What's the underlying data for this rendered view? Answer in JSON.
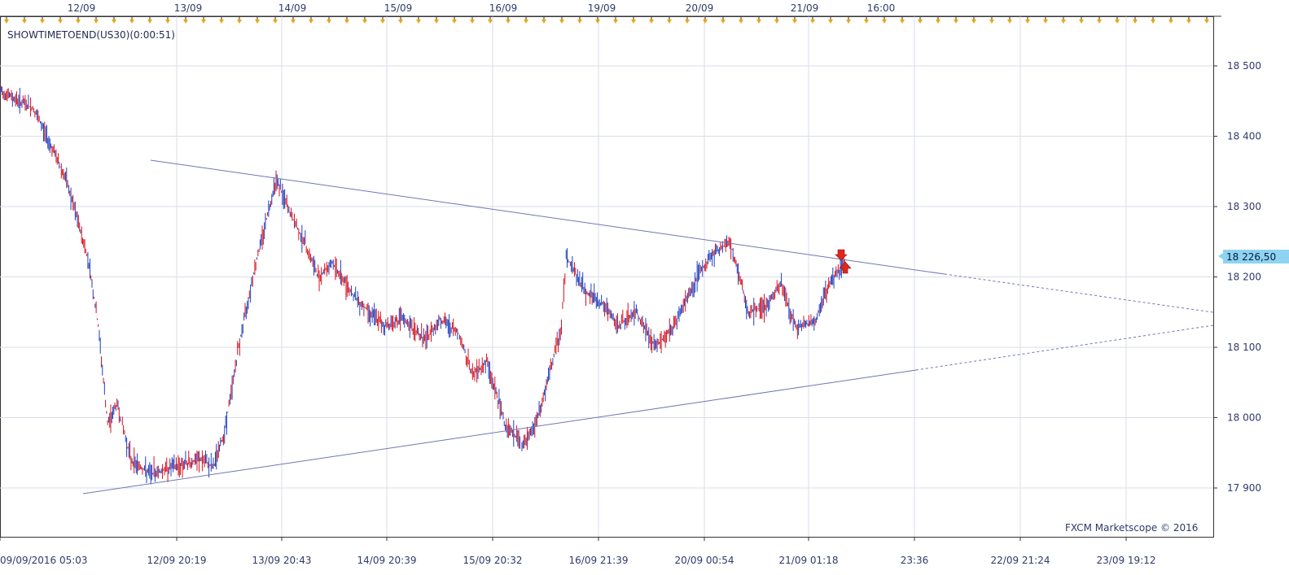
{
  "indicator_label": "SHOWTIMETOEND(US30)(0:00:51)",
  "watermark": "FXCM Marketscope © 2016",
  "current_price_label": "18 226,50",
  "colors": {
    "background": "#ffffff",
    "grid": "#d9dde8",
    "axis": "#333333",
    "up_candle": "#1f3fbf",
    "down_candle": "#d8121d",
    "trendline": "#6f76b3",
    "price_tag": "#8fd3f2",
    "session_marker": "#f0a30a",
    "signal_arrow": "#e1261c"
  },
  "top_axis_labels": [
    "12/09",
    "13/09",
    "14/09",
    "15/09",
    "16/09",
    "19/09",
    "20/09",
    "21/09",
    "16:00"
  ],
  "bottom_axis_labels": [
    "09/09/2016 05:03",
    "12/09 20:19",
    "13/09 20:43",
    "14/09 20:39",
    "15/09 20:32",
    "16/09 21:39",
    "20/09 00:54",
    "21/09 01:18",
    "23:36",
    "22/09 21:24",
    "23/09 19:12"
  ],
  "chart_data": {
    "type": "line",
    "instrument": "US30",
    "ylim": [
      17830,
      18550
    ],
    "yticks": [
      17900,
      18000,
      18100,
      18200,
      18300,
      18400,
      18500
    ],
    "ytick_labels": [
      "17 900",
      "18 000",
      "18 100",
      "18 200",
      "18 300",
      "18 400",
      "18 500"
    ],
    "x": [
      "09/09 05:03",
      "09/09 10:00",
      "09/09 14:00",
      "09/09 18:00",
      "09/09 20:00",
      "12/09 01:00",
      "12/09 03:00",
      "12/09 06:00",
      "12/09 10:00",
      "12/09 14:00",
      "12/09 17:00",
      "12/09 19:00",
      "12/09 20:19",
      "13/09 00:00",
      "13/09 05:00",
      "13/09 09:00",
      "13/09 13:00",
      "13/09 17:00",
      "13/09 20:43",
      "14/09 01:00",
      "14/09 05:00",
      "14/09 09:00",
      "14/09 13:00",
      "14/09 17:00",
      "14/09 20:39",
      "15/09 01:00",
      "15/09 05:00",
      "15/09 09:00",
      "15/09 13:00",
      "15/09 17:00",
      "15/09 20:32",
      "16/09 00:00",
      "16/09 05:00",
      "16/09 09:00",
      "16/09 13:00",
      "16/09 17:00",
      "16/09 21:39",
      "19/09 02:00",
      "19/09 06:00",
      "19/09 10:00",
      "19/09 14:00",
      "19/09 18:00",
      "19/09 21:00",
      "20/09 00:54",
      "20/09 05:00",
      "20/09 09:00",
      "20/09 13:00",
      "20/09 17:00",
      "20/09 21:00",
      "21/09 01:18",
      "21/09 04:00",
      "21/09 07:00",
      "21/09 10:00"
    ],
    "series": [
      {
        "values": [
          18465,
          18450,
          18440,
          18400,
          18340,
          18270,
          18220,
          18130,
          17990,
          18020,
          17940,
          17920,
          17930,
          17940,
          17930,
          17980,
          18100,
          18200,
          18340,
          18290,
          18250,
          18200,
          18220,
          18170,
          18130,
          18140,
          18110,
          18140,
          18120,
          18060,
          18080,
          17990,
          17960,
          18000,
          18050,
          18130,
          18230,
          18180,
          18160,
          18130,
          18150,
          18100,
          18130,
          18200,
          18230,
          18250,
          18150,
          18160,
          18190,
          18130,
          18135,
          18200,
          18220
        ]
      }
    ],
    "trendlines": [
      {
        "name": "upper",
        "from": [
          "12/09 20:19",
          18365
        ],
        "to": [
          "21/09 01:18",
          18226
        ],
        "extended_to": 18150
      },
      {
        "name": "lower",
        "from": [
          "09/09 20:00",
          17890
        ],
        "to": [
          "21/09 01:18",
          18065
        ],
        "extended_to": 18130
      }
    ],
    "current_price": 18226.5,
    "grid": true
  }
}
